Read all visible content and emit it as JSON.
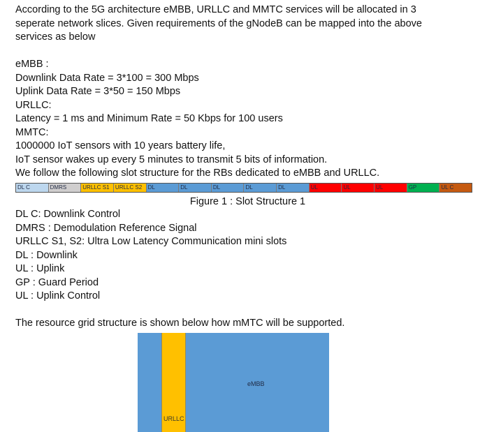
{
  "intro": [
    "According to the 5G architecture eMBB, URLLC and MMTC services will be allocated in 3",
    "seperate network slices. Given requirements of the gNodeB can be mapped into the above",
    "services as below",
    "",
    "eMBB :",
    "Downlink Data Rate = 3*100 = 300 Mbps",
    "Uplink Data Rate = 3*50 = 150 Mbps",
    "URLLC:",
    "Latency = 1 ms and Minimum Rate = 50 Kbps for 100 users",
    "MMTC:",
    "1000000 IoT sensors with 10 years battery life,",
    "IoT sensor wakes up every 5 minutes to transmit 5 bits of information.",
    "We follow the following slot structure for the RBs dedicated to eMBB and URLLC."
  ],
  "slot_structure": [
    {
      "label": "DL C",
      "color": "#bdd7ee"
    },
    {
      "label": "DMRS",
      "color": "#d0cece"
    },
    {
      "label": "URLLC S1",
      "color": "#ffc000"
    },
    {
      "label": "URLLC S2",
      "color": "#ffc000"
    },
    {
      "label": "DL",
      "color": "#5b9bd5"
    },
    {
      "label": "DL",
      "color": "#5b9bd5"
    },
    {
      "label": "DL",
      "color": "#5b9bd5"
    },
    {
      "label": "DL",
      "color": "#5b9bd5"
    },
    {
      "label": "DL",
      "color": "#5b9bd5"
    },
    {
      "label": "UL",
      "color": "#ff0000"
    },
    {
      "label": "UL",
      "color": "#ff0000"
    },
    {
      "label": "UL",
      "color": "#ff0000"
    },
    {
      "label": "GP",
      "color": "#00b050"
    },
    {
      "label": "UL C",
      "color": "#c55a11"
    }
  ],
  "caption": "Figure 1 : Slot Structure 1",
  "legend": [
    "DL C: Downlink Control",
    "DMRS : Demodulation Reference Signal",
    "URLLC S1, S2: Ultra Low Latency Communication mini slots",
    "DL : Downlink",
    "UL : Uplink",
    "GP : Guard Period",
    "UL : Uplink Control",
    "",
    "The resource grid structure is shown below how mMTC will be supported."
  ],
  "resource_grid": {
    "urllc_label": "URLLC",
    "embb_label": "eMBB",
    "embb_color": "#5b9bd5",
    "urllc_color": "#ffc000"
  }
}
